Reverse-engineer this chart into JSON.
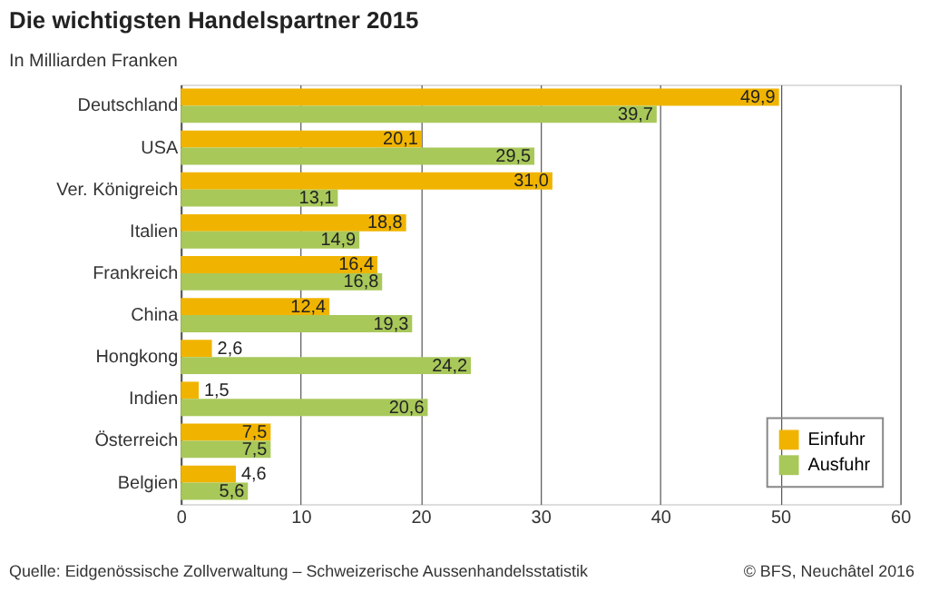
{
  "chart_data": {
    "type": "bar",
    "orientation": "horizontal",
    "title": "Die wichtigsten Handelspartner 2015",
    "subtitle": "In Milliarden Franken",
    "categories": [
      "Deutschland",
      "USA",
      "Ver. Königreich",
      "Italien",
      "Frankreich",
      "China",
      "Hongkong",
      "Indien",
      "Österreich",
      "Belgien"
    ],
    "series": [
      {
        "name": "Einfuhr",
        "color": "#f0b400",
        "values": [
          49.9,
          20.1,
          31.0,
          18.8,
          16.4,
          12.4,
          2.6,
          1.5,
          7.5,
          4.6
        ],
        "value_labels": [
          "49,9",
          "20,1",
          "31,0",
          "18,8",
          "16,4",
          "12,4",
          "2,6",
          "1,5",
          "7,5",
          "4,6"
        ]
      },
      {
        "name": "Ausfuhr",
        "color": "#a8c85a",
        "values": [
          39.7,
          29.5,
          13.1,
          14.9,
          16.8,
          19.3,
          24.2,
          20.6,
          7.5,
          5.6
        ],
        "value_labels": [
          "39,7",
          "29,5",
          "13,1",
          "14,9",
          "16,8",
          "19,3",
          "24,2",
          "20,6",
          "7,5",
          "5,6"
        ]
      }
    ],
    "xlim": [
      0,
      60
    ],
    "xticks": [
      0,
      10,
      20,
      30,
      40,
      50,
      60
    ],
    "grid": "x",
    "legend": "bottom right",
    "annotations": [
      "Quelle: Eidgenössische Zollverwaltung – Schweizerische Aussenhandelsstatistik",
      "© BFS, Neuchâtel 2016"
    ]
  }
}
